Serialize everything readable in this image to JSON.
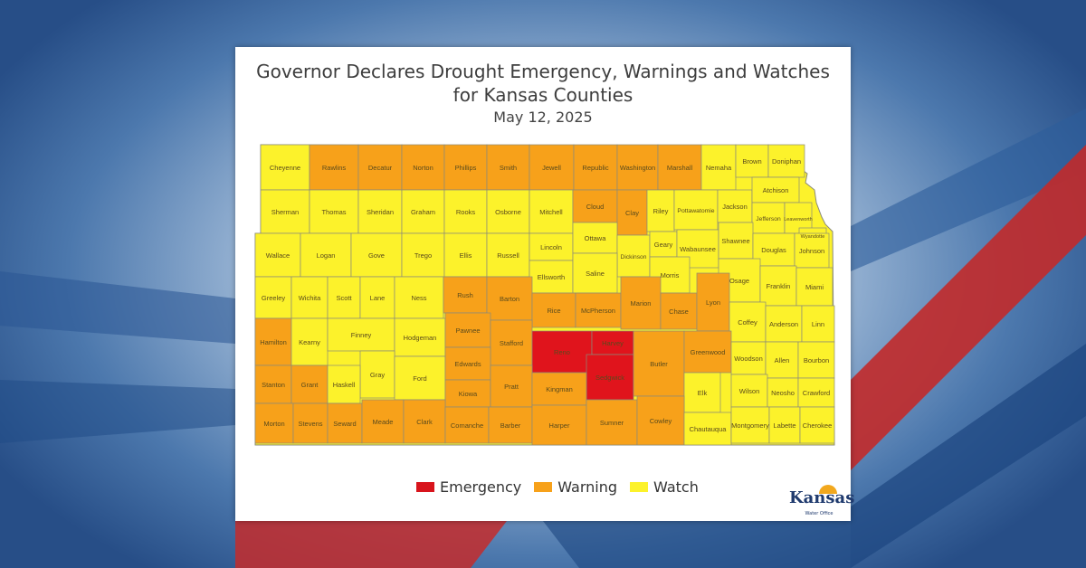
{
  "title_line1": "Governor Declares Drought Emergency, Warnings and Watches",
  "title_line2": "for Kansas Counties",
  "date": "May 12, 2025",
  "legend": [
    {
      "label": "Emergency",
      "color": "#d8141c"
    },
    {
      "label": "Warning",
      "color": "#f7a11a"
    },
    {
      "label": "Watch",
      "color": "#fcf22b"
    }
  ],
  "logo": {
    "name": "Kansas",
    "sub": "Water Office"
  },
  "status_colors": {
    "E": "#e0141c",
    "W": "#f7a11a",
    "V": "#fcf22b"
  },
  "counties": [
    {
      "name": "Cheyenne",
      "status": "V"
    },
    {
      "name": "Rawlins",
      "status": "W"
    },
    {
      "name": "Decatur",
      "status": "W"
    },
    {
      "name": "Norton",
      "status": "W"
    },
    {
      "name": "Phillips",
      "status": "W"
    },
    {
      "name": "Smith",
      "status": "W"
    },
    {
      "name": "Jewell",
      "status": "W"
    },
    {
      "name": "Republic",
      "status": "W"
    },
    {
      "name": "Washington",
      "status": "W"
    },
    {
      "name": "Marshall",
      "status": "W"
    },
    {
      "name": "Nemaha",
      "status": "V"
    },
    {
      "name": "Brown",
      "status": "V"
    },
    {
      "name": "Doniphan",
      "status": "V"
    },
    {
      "name": "Sherman",
      "status": "V"
    },
    {
      "name": "Thomas",
      "status": "V"
    },
    {
      "name": "Sheridan",
      "status": "V"
    },
    {
      "name": "Graham",
      "status": "V"
    },
    {
      "name": "Rooks",
      "status": "V"
    },
    {
      "name": "Osborne",
      "status": "V"
    },
    {
      "name": "Mitchell",
      "status": "V"
    },
    {
      "name": "Cloud",
      "status": "W"
    },
    {
      "name": "Clay",
      "status": "W"
    },
    {
      "name": "Riley",
      "status": "V"
    },
    {
      "name": "Pottawatomie",
      "status": "V"
    },
    {
      "name": "Jackson",
      "status": "V"
    },
    {
      "name": "Atchison",
      "status": "V"
    },
    {
      "name": "Jefferson",
      "status": "V"
    },
    {
      "name": "Leavenworth",
      "status": "V"
    },
    {
      "name": "Wyandotte",
      "status": "V"
    },
    {
      "name": "Wallace",
      "status": "V"
    },
    {
      "name": "Logan",
      "status": "V"
    },
    {
      "name": "Gove",
      "status": "V"
    },
    {
      "name": "Trego",
      "status": "V"
    },
    {
      "name": "Ellis",
      "status": "V"
    },
    {
      "name": "Russell",
      "status": "V"
    },
    {
      "name": "Lincoln",
      "status": "V"
    },
    {
      "name": "Ottawa",
      "status": "V"
    },
    {
      "name": "Dickinson",
      "status": "V"
    },
    {
      "name": "Geary",
      "status": "V"
    },
    {
      "name": "Wabaunsee",
      "status": "V"
    },
    {
      "name": "Shawnee",
      "status": "V"
    },
    {
      "name": "Douglas",
      "status": "V"
    },
    {
      "name": "Johnson",
      "status": "V"
    },
    {
      "name": "Ellsworth",
      "status": "V"
    },
    {
      "name": "Saline",
      "status": "V"
    },
    {
      "name": "Morris",
      "status": "V"
    },
    {
      "name": "Osage",
      "status": "V"
    },
    {
      "name": "Franklin",
      "status": "V"
    },
    {
      "name": "Miami",
      "status": "V"
    },
    {
      "name": "Greeley",
      "status": "V"
    },
    {
      "name": "Wichita",
      "status": "V"
    },
    {
      "name": "Scott",
      "status": "V"
    },
    {
      "name": "Lane",
      "status": "V"
    },
    {
      "name": "Ness",
      "status": "V"
    },
    {
      "name": "Rush",
      "status": "W"
    },
    {
      "name": "Barton",
      "status": "W"
    },
    {
      "name": "Rice",
      "status": "W"
    },
    {
      "name": "McPherson",
      "status": "W"
    },
    {
      "name": "Marion",
      "status": "W"
    },
    {
      "name": "Chase",
      "status": "W"
    },
    {
      "name": "Lyon",
      "status": "W"
    },
    {
      "name": "Coffey",
      "status": "V"
    },
    {
      "name": "Anderson",
      "status": "V"
    },
    {
      "name": "Linn",
      "status": "V"
    },
    {
      "name": "Hamilton",
      "status": "W"
    },
    {
      "name": "Kearny",
      "status": "V"
    },
    {
      "name": "Finney",
      "status": "V"
    },
    {
      "name": "Hodgeman",
      "status": "V"
    },
    {
      "name": "Pawnee",
      "status": "W"
    },
    {
      "name": "Stafford",
      "status": "W"
    },
    {
      "name": "Reno",
      "status": "E"
    },
    {
      "name": "Harvey",
      "status": "E"
    },
    {
      "name": "Sedgwick",
      "status": "E"
    },
    {
      "name": "Butler",
      "status": "W"
    },
    {
      "name": "Greenwood",
      "status": "W"
    },
    {
      "name": "Woodson",
      "status": "V"
    },
    {
      "name": "Allen",
      "status": "V"
    },
    {
      "name": "Bourbon",
      "status": "V"
    },
    {
      "name": "Gray",
      "status": "V"
    },
    {
      "name": "Ford",
      "status": "V"
    },
    {
      "name": "Edwards",
      "status": "W"
    },
    {
      "name": "Stanton",
      "status": "W"
    },
    {
      "name": "Grant",
      "status": "W"
    },
    {
      "name": "Haskell",
      "status": "V"
    },
    {
      "name": "Kiowa",
      "status": "W"
    },
    {
      "name": "Pratt",
      "status": "W"
    },
    {
      "name": "Kingman",
      "status": "W"
    },
    {
      "name": "Elk",
      "status": "V"
    },
    {
      "name": "Wilson",
      "status": "V"
    },
    {
      "name": "Neosho",
      "status": "V"
    },
    {
      "name": "Crawford",
      "status": "V"
    },
    {
      "name": "Morton",
      "status": "W"
    },
    {
      "name": "Stevens",
      "status": "W"
    },
    {
      "name": "Seward",
      "status": "W"
    },
    {
      "name": "Meade",
      "status": "W"
    },
    {
      "name": "Clark",
      "status": "W"
    },
    {
      "name": "Comanche",
      "status": "W"
    },
    {
      "name": "Barber",
      "status": "W"
    },
    {
      "name": "Harper",
      "status": "W"
    },
    {
      "name": "Sumner",
      "status": "W"
    },
    {
      "name": "Cowley",
      "status": "W"
    },
    {
      "name": "Chautauqua",
      "status": "V"
    },
    {
      "name": "Montgomery",
      "status": "V"
    },
    {
      "name": "Labette",
      "status": "V"
    },
    {
      "name": "Cherokee",
      "status": "V"
    }
  ]
}
